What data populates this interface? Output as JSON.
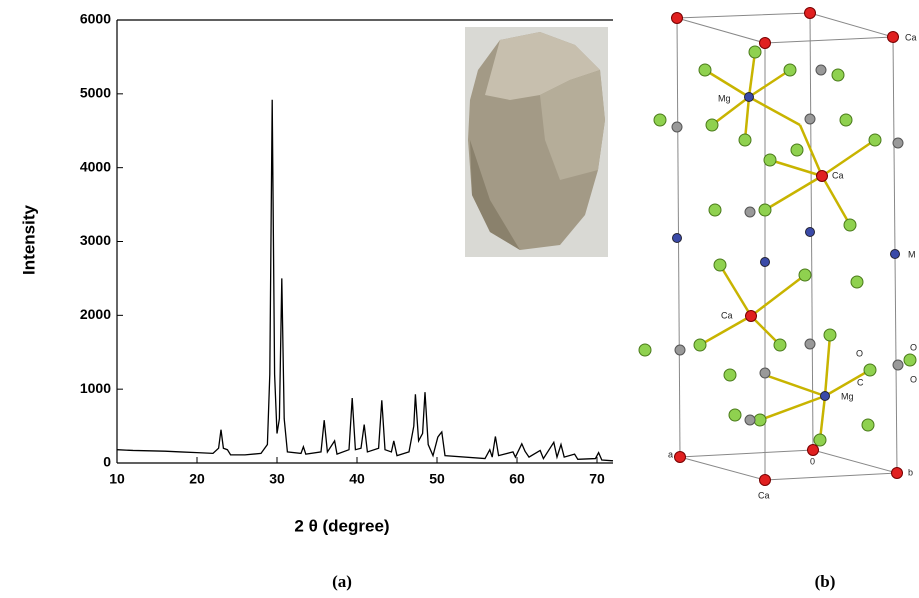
{
  "chart_data": {
    "type": "line",
    "color": "#000000",
    "x_label": "2 θ  (degree)",
    "y_label": "Intensity",
    "xlim": [
      10,
      72
    ],
    "ylim": [
      0,
      6000
    ],
    "xticks": [
      10,
      20,
      30,
      40,
      50,
      60,
      70
    ],
    "yticks": [
      0,
      1000,
      2000,
      3000,
      4000,
      5000,
      6000
    ],
    "x": [
      10,
      12,
      14,
      16,
      18,
      20,
      22,
      22.7,
      23.0,
      23.3,
      23.8,
      24.2,
      26,
      28,
      28.8,
      29.1,
      29.4,
      29.7,
      30.0,
      30.3,
      30.6,
      30.9,
      31.3,
      33,
      33.3,
      33.6,
      35.5,
      35.9,
      36.3,
      37.2,
      37.5,
      39,
      39.4,
      39.8,
      40.5,
      40.9,
      41.3,
      42.7,
      43.1,
      43.5,
      44.3,
      44.6,
      45,
      46.5,
      47.1,
      47.3,
      47.7,
      48.2,
      48.5,
      48.9,
      49.5,
      50.1,
      50.3,
      50.6,
      51,
      56,
      56.6,
      56.9,
      57.3,
      57.7,
      59.5,
      59.8,
      60.6,
      61,
      61.5,
      62.9,
      63.3,
      64.6,
      65,
      65.5,
      65.9,
      67.2,
      67.6,
      69.8,
      70.2,
      70.6,
      72
    ],
    "values": [
      180,
      170,
      165,
      160,
      150,
      140,
      130,
      200,
      450,
      200,
      180,
      110,
      110,
      130,
      250,
      1200,
      4920,
      1200,
      400,
      600,
      2500,
      600,
      150,
      130,
      220,
      120,
      150,
      580,
      150,
      300,
      120,
      180,
      880,
      180,
      200,
      520,
      150,
      200,
      850,
      180,
      150,
      300,
      100,
      150,
      500,
      930,
      300,
      400,
      960,
      250,
      100,
      350,
      380,
      420,
      100,
      60,
      180,
      80,
      360,
      100,
      150,
      80,
      260,
      160,
      80,
      170,
      60,
      280,
      80,
      250,
      80,
      120,
      50,
      60,
      140,
      40,
      30
    ]
  },
  "figure": {
    "panel_labels": [
      "(a)",
      "(b)"
    ],
    "structure_labels": [
      "Ca",
      "Mg",
      "Ca",
      "M",
      "Ca",
      "O",
      "C",
      "O",
      "O",
      "Mg",
      "a",
      "0",
      "b",
      "Ca"
    ]
  }
}
